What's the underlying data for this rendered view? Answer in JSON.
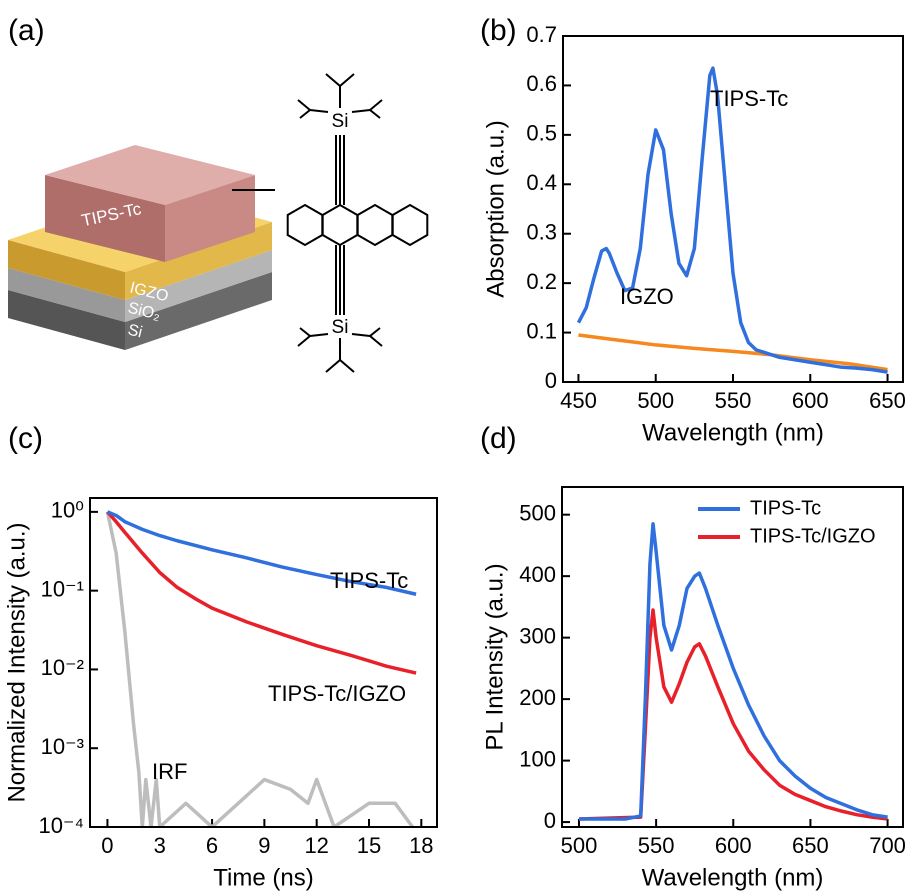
{
  "diagram": {
    "label": "(a)",
    "layers": [
      "TIPS-Tc",
      "IGZO",
      "SiO₂",
      "Si"
    ],
    "molecule_atoms": [
      "Si",
      "Si"
    ]
  },
  "chart_data": [
    {
      "type": "line",
      "panel_label": "(b)",
      "x_label": "Wavelength (nm)",
      "y_label": "Absorption (a.u.)",
      "xlim": [
        440,
        660
      ],
      "ylim": [
        0,
        0.7
      ],
      "xticks": [
        450,
        500,
        550,
        600,
        650
      ],
      "yticks": [
        0,
        0.1,
        0.2,
        0.3,
        0.4,
        0.5,
        0.6,
        0.7
      ],
      "series": [
        {
          "name": "TIPS-Tc",
          "color": "#2f6fde",
          "x": [
            450,
            455,
            460,
            465,
            468,
            470,
            475,
            480,
            485,
            490,
            495,
            500,
            505,
            510,
            515,
            520,
            525,
            530,
            535,
            537,
            540,
            545,
            550,
            555,
            560,
            565,
            570,
            580,
            590,
            600,
            610,
            620,
            630,
            640,
            650
          ],
          "values": [
            0.12,
            0.15,
            0.21,
            0.265,
            0.27,
            0.26,
            0.22,
            0.185,
            0.19,
            0.27,
            0.42,
            0.51,
            0.47,
            0.34,
            0.24,
            0.215,
            0.27,
            0.45,
            0.62,
            0.635,
            0.58,
            0.4,
            0.22,
            0.12,
            0.08,
            0.065,
            0.06,
            0.05,
            0.045,
            0.04,
            0.035,
            0.03,
            0.028,
            0.025,
            0.02
          ]
        },
        {
          "name": "IGZO",
          "color": "#f5881f",
          "x": [
            450,
            475,
            500,
            525,
            550,
            575,
            600,
            625,
            650
          ],
          "values": [
            0.095,
            0.085,
            0.075,
            0.068,
            0.062,
            0.055,
            0.045,
            0.037,
            0.025
          ]
        }
      ]
    },
    {
      "type": "line",
      "panel_label": "(c)",
      "x_label": "Time (ns)",
      "y_label": "Normalized Intensity (a.u.)",
      "log_y": true,
      "xlim": [
        -1,
        18.9
      ],
      "ylim": [
        0.0001,
        1.5
      ],
      "xticks": [
        0,
        3,
        6,
        9,
        12,
        15,
        18
      ],
      "yticks": [
        {
          "value": 0.0001,
          "label": "10⁻⁴"
        },
        {
          "value": 0.001,
          "label": "10⁻³"
        },
        {
          "value": 0.01,
          "label": "10⁻²"
        },
        {
          "value": 0.1,
          "label": "10⁻¹"
        },
        {
          "value": 1,
          "label": "10⁰"
        }
      ],
      "series": [
        {
          "name": "TIPS-Tc",
          "color": "#2f6fde",
          "x": [
            0,
            0.5,
            1,
            2,
            3,
            4,
            6,
            8,
            10,
            12,
            14,
            16,
            17.7
          ],
          "values": [
            1,
            0.9,
            0.75,
            0.6,
            0.5,
            0.43,
            0.33,
            0.26,
            0.2,
            0.16,
            0.13,
            0.11,
            0.09
          ]
        },
        {
          "name": "TIPS-Tc/IGZO",
          "color": "#e8202a",
          "x": [
            0,
            0.5,
            1,
            2,
            3,
            4,
            5,
            6,
            8,
            10,
            12,
            14,
            16,
            17.7
          ],
          "values": [
            1,
            0.75,
            0.55,
            0.3,
            0.17,
            0.11,
            0.08,
            0.06,
            0.04,
            0.028,
            0.02,
            0.015,
            0.011,
            0.009
          ]
        },
        {
          "name": "IRF",
          "color": "#bdbdbd",
          "x": [
            0,
            0.5,
            1,
            1.5,
            1.8,
            2,
            2.2,
            2.5,
            2.8,
            3,
            4.5,
            6,
            7.5,
            9,
            10.5,
            11.5,
            12,
            13,
            15,
            16.5,
            17.5
          ],
          "values": [
            1,
            0.3,
            0.03,
            0.002,
            0.0005,
            0.0001,
            0.0004,
            0.0001,
            0.0004,
            0.0001,
            0.0002,
            0.0001,
            0.0002,
            0.0004,
            0.0003,
            0.0002,
            0.0004,
            0.0001,
            0.0002,
            0.0002,
            0.0001
          ]
        }
      ]
    },
    {
      "type": "line",
      "panel_label": "(d)",
      "x_label": "Wavelength (nm)",
      "y_label": "PL Intensity (a.u.)",
      "legend": "upper right",
      "xlim": [
        489,
        710
      ],
      "ylim": [
        -8,
        545
      ],
      "xticks": [
        500,
        550,
        600,
        650,
        700
      ],
      "yticks": [
        0,
        100,
        200,
        300,
        400,
        500
      ],
      "series": [
        {
          "name": "TIPS-Tc",
          "color": "#2f6fde",
          "x": [
            500,
            530,
            540,
            543,
            546,
            548,
            550,
            555,
            560,
            565,
            570,
            575,
            578,
            582,
            590,
            600,
            610,
            620,
            630,
            640,
            650,
            660,
            670,
            680,
            690,
            700
          ],
          "values": [
            5,
            5,
            10,
            200,
            420,
            485,
            440,
            320,
            280,
            320,
            380,
            400,
            405,
            380,
            320,
            250,
            190,
            140,
            100,
            75,
            55,
            40,
            30,
            20,
            12,
            8
          ]
        },
        {
          "name": "TIPS-Tc/IGZO",
          "color": "#e8202a",
          "x": [
            500,
            540,
            543,
            546,
            548,
            550,
            555,
            560,
            565,
            570,
            575,
            578,
            582,
            590,
            600,
            610,
            620,
            630,
            640,
            650,
            660,
            670,
            680,
            690,
            700
          ],
          "values": [
            5,
            8,
            150,
            300,
            345,
            300,
            220,
            195,
            225,
            260,
            285,
            290,
            270,
            220,
            160,
            115,
            85,
            60,
            45,
            35,
            25,
            18,
            12,
            8,
            5
          ]
        }
      ]
    }
  ]
}
